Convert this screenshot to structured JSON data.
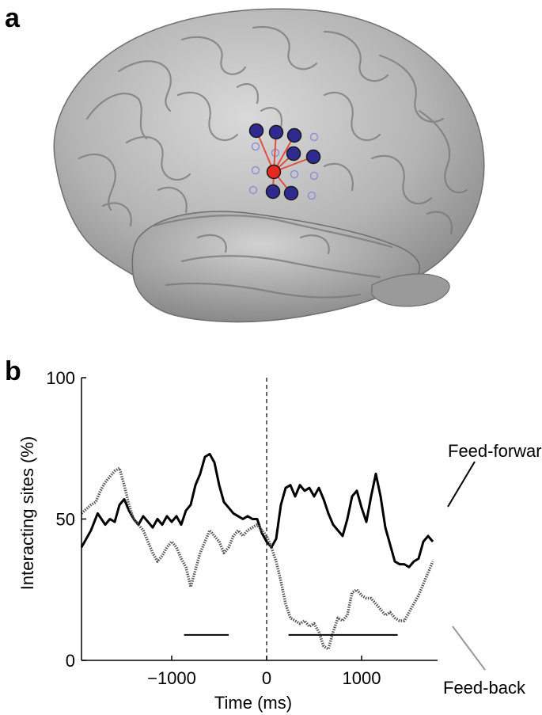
{
  "panels": {
    "a_label": "a",
    "b_label": "b"
  },
  "brain": {
    "description_colors": {
      "cortex": "#a9a9a9",
      "node_seed": "#e8281e",
      "node_site": "#2f2a8f",
      "node_outline": "#1a1a1a",
      "connection": "#e05040",
      "ghost_site": "#8f8fd8"
    }
  },
  "chart_data": {
    "type": "line",
    "xlabel": "Time (ms)",
    "ylabel": "Interacting sites (%)",
    "xlim": [
      -1950,
      1800
    ],
    "ylim": [
      0,
      100
    ],
    "xticks": [
      -1000,
      0,
      1000
    ],
    "xtick_labels": [
      "−1000",
      "0",
      "1000"
    ],
    "yticks": [
      0,
      50,
      100
    ],
    "ytick_labels": [
      "0",
      "50",
      "100"
    ],
    "vline_x": 0,
    "series": [
      {
        "name": "Feed-forward",
        "color": "#000000",
        "style": "solid",
        "x": [
          -1950,
          -1850,
          -1780,
          -1700,
          -1650,
          -1600,
          -1550,
          -1500,
          -1450,
          -1400,
          -1350,
          -1300,
          -1250,
          -1200,
          -1150,
          -1100,
          -1050,
          -1000,
          -950,
          -900,
          -850,
          -800,
          -750,
          -700,
          -650,
          -600,
          -550,
          -500,
          -450,
          -400,
          -350,
          -300,
          -250,
          -200,
          -150,
          -100,
          -50,
          0,
          50,
          100,
          150,
          200,
          250,
          300,
          350,
          400,
          450,
          500,
          550,
          600,
          650,
          700,
          750,
          800,
          850,
          900,
          950,
          1000,
          1050,
          1100,
          1150,
          1200,
          1250,
          1300,
          1350,
          1400,
          1450,
          1500,
          1550,
          1600,
          1650,
          1700,
          1750
        ],
        "y": [
          40,
          46,
          52,
          48,
          50,
          49,
          55,
          57,
          53,
          50,
          48,
          51,
          49,
          47,
          50,
          48,
          51,
          49,
          51,
          48,
          53,
          55,
          62,
          66,
          72,
          73,
          70,
          62,
          56,
          54,
          52,
          51,
          50,
          51,
          50,
          50,
          45,
          42,
          40,
          43,
          55,
          61,
          62,
          58,
          62,
          60,
          61,
          58,
          61,
          57,
          52,
          48,
          46,
          44,
          50,
          58,
          60,
          54,
          49,
          58,
          66,
          58,
          47,
          41,
          35,
          34,
          34,
          33,
          35,
          36,
          42,
          44,
          42
        ],
        "y_note": ""
      },
      {
        "name": "Feed-back",
        "color": "#777777",
        "style": "dotted",
        "x": [
          -1950,
          -1850,
          -1800,
          -1750,
          -1700,
          -1650,
          -1600,
          -1550,
          -1500,
          -1450,
          -1400,
          -1350,
          -1300,
          -1250,
          -1200,
          -1150,
          -1100,
          -1050,
          -1000,
          -950,
          -900,
          -850,
          -800,
          -750,
          -700,
          -650,
          -600,
          -550,
          -500,
          -450,
          -400,
          -350,
          -300,
          -250,
          -200,
          -150,
          -100,
          -50,
          0,
          50,
          100,
          150,
          200,
          250,
          300,
          350,
          400,
          450,
          500,
          550,
          600,
          650,
          700,
          750,
          800,
          850,
          900,
          950,
          1000,
          1050,
          1100,
          1150,
          1200,
          1250,
          1300,
          1350,
          1400,
          1450,
          1500,
          1550,
          1600,
          1650,
          1700,
          1750
        ],
        "y": [
          52,
          55,
          56,
          60,
          63,
          65,
          67,
          68,
          62,
          55,
          50,
          48,
          46,
          42,
          38,
          35,
          37,
          40,
          42,
          40,
          36,
          33,
          26,
          32,
          38,
          42,
          46,
          44,
          42,
          38,
          40,
          44,
          46,
          44,
          46,
          47,
          48,
          46,
          44,
          40,
          35,
          28,
          20,
          15,
          14,
          13,
          14,
          12,
          13,
          10,
          5,
          4,
          10,
          15,
          14,
          16,
          24,
          25,
          23,
          22,
          22,
          20,
          18,
          16,
          17,
          15,
          14,
          14,
          17,
          20,
          23,
          27,
          31,
          35
        ],
        "y_note": ""
      }
    ],
    "significance_bars": [
      {
        "x_start": -870,
        "x_end": -400,
        "y": 9
      },
      {
        "x_start": 230,
        "x_end": 1380,
        "y": 9
      }
    ],
    "legend": {
      "entries": [
        "Feed-forward",
        "Feed-back"
      ],
      "placement": "right"
    }
  }
}
